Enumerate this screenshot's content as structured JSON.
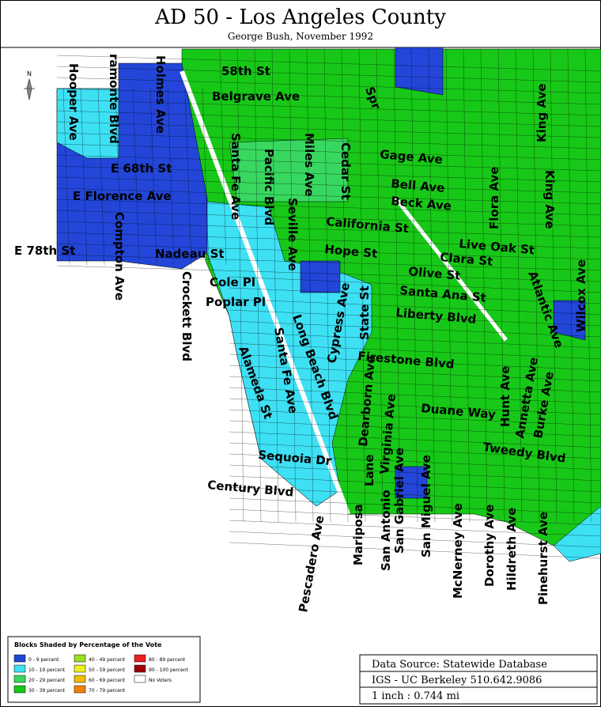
{
  "header": {
    "title": "AD 50 - Los Angeles County",
    "subtitle": "George Bush, November 1992"
  },
  "north": "N",
  "streets": [
    "58th St",
    "Belgrave Ave",
    "Spr",
    "Hooper Ave",
    "ramonte Blvd",
    "Holmes Ave",
    "E 68th St",
    "E Florence Ave",
    "E 78th St",
    "Compton Ave",
    "Nadeau St",
    "Crockett Blvd",
    "Santa Fe Ave",
    "Pacific Blvd",
    "Miles Ave",
    "Cedar St",
    "Seville Ave",
    "Gage Ave",
    "Bell Ave",
    "Beck Ave",
    "California St",
    "Hope St",
    "Live Oak St",
    "Clara St",
    "Olive St",
    "Santa Ana St",
    "Liberty Blvd",
    "Firestone Blvd",
    "Duane Way",
    "Tweedy Blvd",
    "Century Blvd",
    "Sequoia Dr",
    "Cole Pl",
    "Poplar Pl",
    "King Ave",
    "Flora Ave",
    "King Ave",
    "Wilcox Ave",
    "Atlantic Ave",
    "Hunt Ave",
    "Annetta Ave",
    "Burke Ave",
    "Cypress Ave",
    "State St",
    "Long Beach Blvd",
    "Santa Fe Ave",
    "Alameda St",
    "Dearborn Ave",
    "Lane",
    "Mariposa",
    "Virginia Ave",
    "San Antonio",
    "San Gabriel Ave",
    "San Miguel Ave",
    "Pescadero Ave",
    "McNerney Ave",
    "Dorothy Ave",
    "Hildreth Ave",
    "Pinehurst Ave"
  ],
  "legend": {
    "title": "Blocks Shaded by Percentage of the Vote",
    "items": [
      {
        "label": "0 - 9 percent",
        "color": "#2346d8"
      },
      {
        "label": "10 - 19 percent",
        "color": "#3ee0f4"
      },
      {
        "label": "20 - 29 percent",
        "color": "#38d860"
      },
      {
        "label": "30 - 39 percent",
        "color": "#18c818"
      },
      {
        "label": "40 - 49 percent",
        "color": "#98e020"
      },
      {
        "label": "50 - 59 percent",
        "color": "#f0f020"
      },
      {
        "label": "60 - 69 percent",
        "color": "#f0c000"
      },
      {
        "label": "70 - 79 percent",
        "color": "#f08000"
      },
      {
        "label": "80 - 89 percent",
        "color": "#e82020"
      },
      {
        "label": "90 - 100 percent",
        "color": "#a00000"
      },
      {
        "label": "No Voters",
        "color": "#ffffff"
      }
    ]
  },
  "source": {
    "lines": [
      "Data Source: Statewide Database",
      "IGS - UC Berkeley 510.642.9086",
      "1 inch : 0.744 mi"
    ]
  }
}
